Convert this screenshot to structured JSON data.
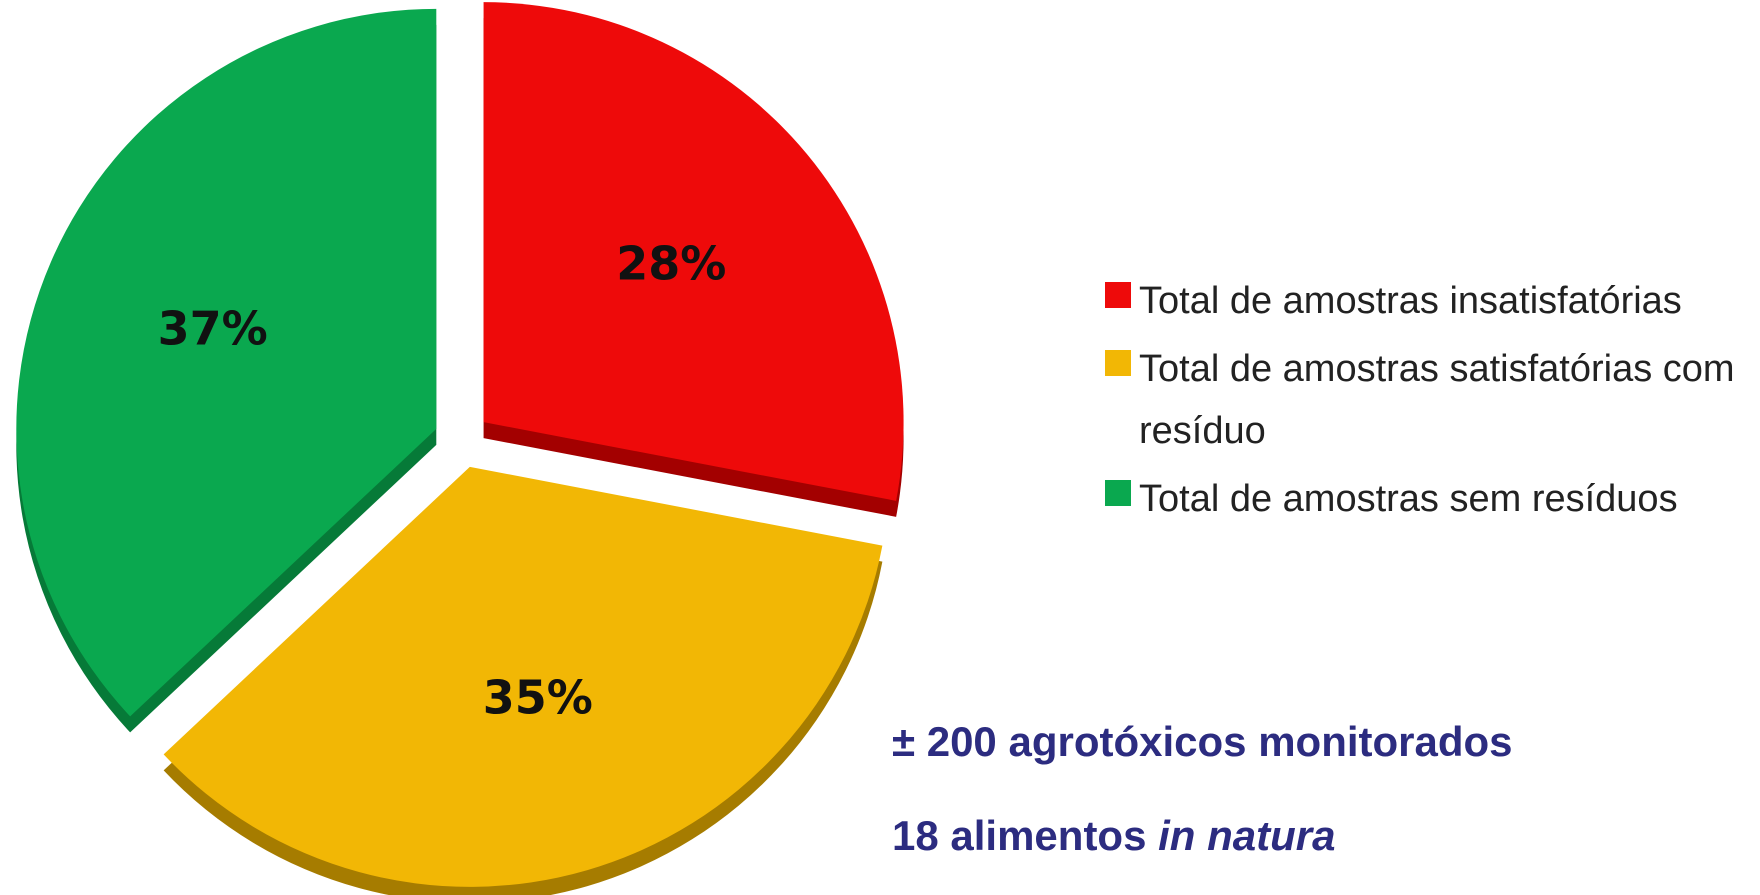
{
  "chart_data": {
    "type": "pie",
    "categories": [
      "Total de amostras insatisfatórias",
      "Total de amostras satisfatórias com resíduo",
      "Total de amostras sem resíduos"
    ],
    "values": [
      28,
      35,
      37
    ],
    "value_labels": [
      "28%",
      "35%",
      "37%"
    ],
    "colors": [
      "#ee0a0a",
      "#f2b705",
      "#0aa84f"
    ],
    "depth_colors": [
      "#a30000",
      "#a67c00",
      "#067a38"
    ],
    "annotations": [
      "± 200 agrotóxicos monitorados",
      "18 alimentos",
      "in natura"
    ]
  }
}
